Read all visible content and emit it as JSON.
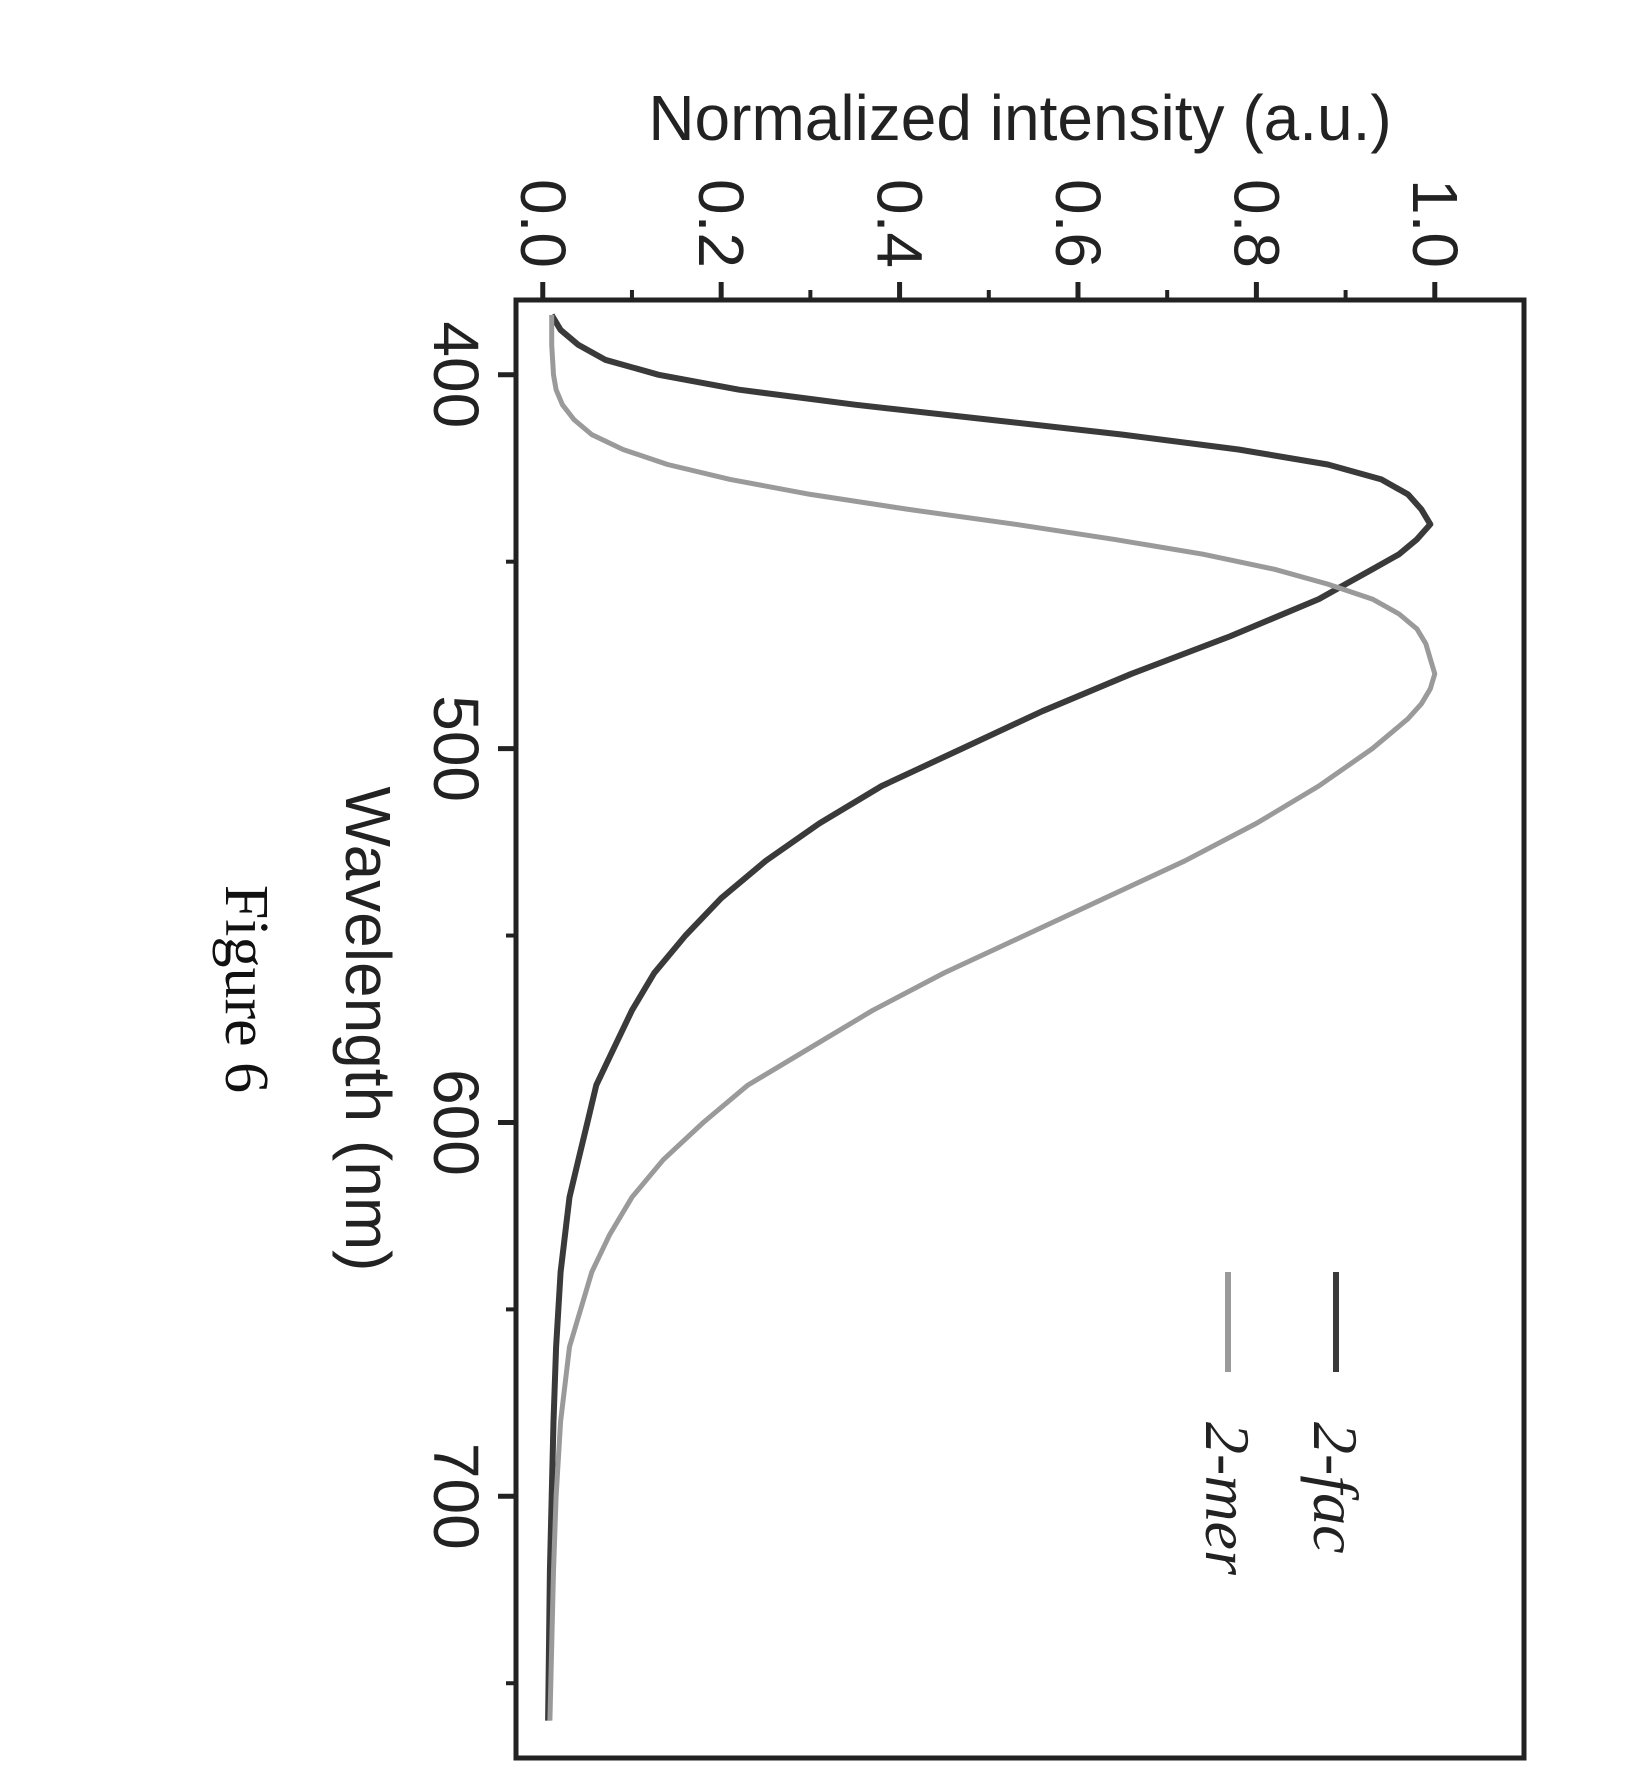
{
  "chart_data": {
    "type": "line",
    "xlabel": "Wavelength (nm)",
    "ylabel": "Normalized intensity (a.u.)",
    "xlim": [
      380,
      770
    ],
    "ylim": [
      -0.03,
      1.1
    ],
    "x_ticks": [
      400,
      500,
      600,
      700
    ],
    "y_ticks": [
      0.0,
      0.2,
      0.4,
      0.6,
      0.8,
      1.0
    ],
    "x_tick_labels": [
      "400",
      "500",
      "600",
      "700"
    ],
    "y_tick_labels": [
      "0.0",
      "0.2",
      "0.4",
      "0.6",
      "0.8",
      "1.0"
    ],
    "legend_position": "top-right",
    "series": [
      {
        "name": "2-fac",
        "color": "#3a3a3a",
        "x": [
          384,
          388,
          392,
          396,
          400,
          404,
          408,
          412,
          416,
          420,
          424,
          428,
          432,
          436,
          440,
          444,
          448,
          452,
          456,
          460,
          465,
          470,
          480,
          490,
          500,
          510,
          520,
          530,
          540,
          550,
          560,
          570,
          580,
          590,
          600,
          610,
          620,
          640,
          660,
          680,
          700,
          720,
          740,
          760
        ],
        "y": [
          0.01,
          0.02,
          0.04,
          0.07,
          0.13,
          0.22,
          0.35,
          0.5,
          0.65,
          0.78,
          0.88,
          0.94,
          0.97,
          0.985,
          0.995,
          0.98,
          0.96,
          0.93,
          0.9,
          0.87,
          0.82,
          0.77,
          0.66,
          0.56,
          0.47,
          0.38,
          0.31,
          0.25,
          0.2,
          0.16,
          0.125,
          0.1,
          0.08,
          0.06,
          0.05,
          0.04,
          0.03,
          0.02,
          0.015,
          0.012,
          0.01,
          0.008,
          0.007,
          0.006
        ]
      },
      {
        "name": "2-mer",
        "color": "#9a9a9a",
        "x": [
          384,
          392,
          400,
          404,
          408,
          412,
          416,
          420,
          424,
          428,
          432,
          436,
          440,
          444,
          448,
          452,
          456,
          460,
          464,
          468,
          472,
          476,
          480,
          484,
          488,
          492,
          496,
          500,
          510,
          520,
          530,
          540,
          550,
          560,
          570,
          580,
          590,
          600,
          610,
          620,
          630,
          640,
          660,
          680,
          700,
          720,
          740,
          760
        ],
        "y": [
          0.01,
          0.01,
          0.012,
          0.015,
          0.022,
          0.035,
          0.055,
          0.09,
          0.14,
          0.21,
          0.3,
          0.41,
          0.53,
          0.64,
          0.74,
          0.82,
          0.88,
          0.93,
          0.96,
          0.98,
          0.99,
          0.995,
          1.0,
          0.995,
          0.985,
          0.97,
          0.95,
          0.93,
          0.87,
          0.8,
          0.72,
          0.63,
          0.54,
          0.45,
          0.37,
          0.3,
          0.23,
          0.18,
          0.135,
          0.1,
          0.075,
          0.055,
          0.03,
          0.02,
          0.015,
          0.012,
          0.01,
          0.008
        ]
      }
    ]
  },
  "caption": "Figure 6"
}
